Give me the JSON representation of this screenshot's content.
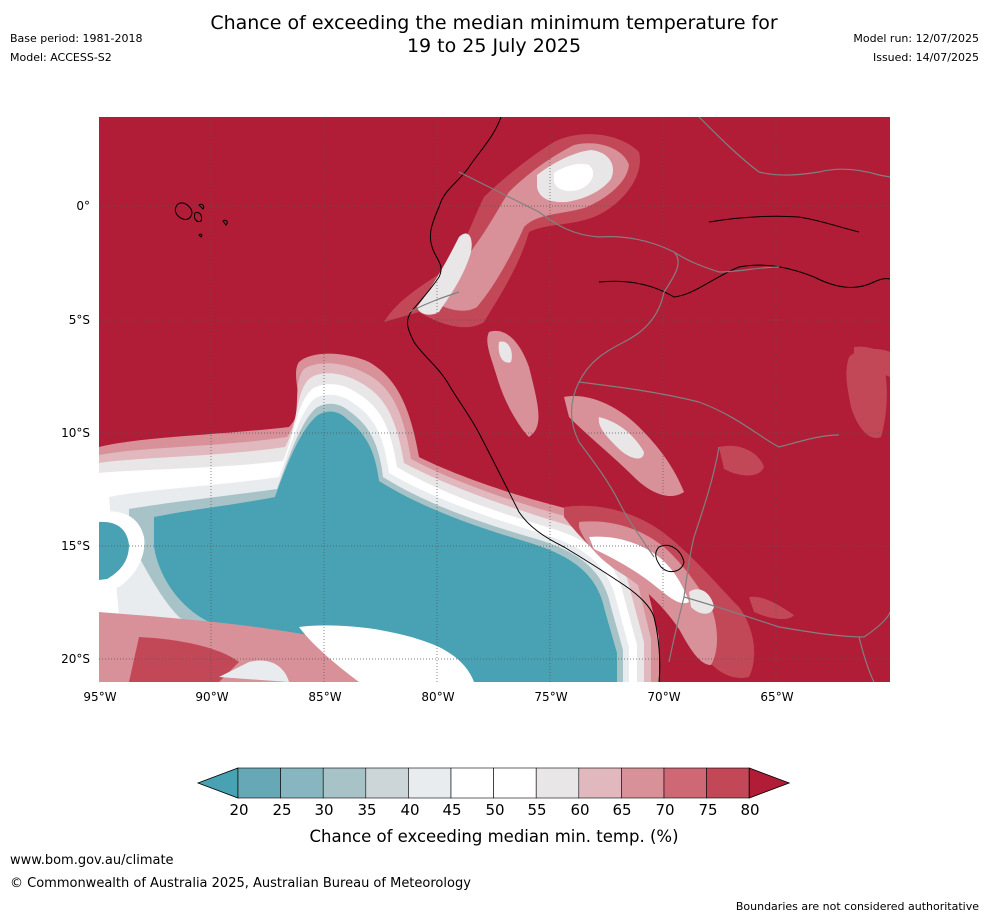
{
  "header": {
    "title_line1": "Chance of exceeding the median minimum temperature for",
    "title_line2": "19 to 25 July 2025",
    "base_period": "Base period: 1981-2018",
    "model": "Model: ACCESS-S2",
    "model_run": "Model run: 12/07/2025",
    "issued": "Issued: 14/07/2025"
  },
  "map": {
    "lat_labels": [
      "0°",
      "5°S",
      "10°S",
      "15°S",
      "20°S"
    ],
    "lon_labels": [
      "95°W",
      "90°W",
      "85°W",
      "80°W",
      "75°W",
      "70°W",
      "65°W"
    ],
    "colors": {
      "above_80": "#b11c37",
      "r75_80": "#c24858",
      "r70_75": "#cf6875",
      "r65_70": "#d89199",
      "r60_65": "#e1b8bd",
      "r55_60": "#e9e6e8",
      "r50_55": "#ffffff",
      "r45_50": "#ffffff",
      "r40_45": "#e8ecef",
      "r35_40": "#ccd5d8",
      "r30_35": "#a8c3c8",
      "r25_30": "#87b6c0",
      "r20_25": "#66a8b5",
      "below_20": "#48a2b3",
      "coast": "#000000",
      "border": "#808080",
      "grid": "#555555"
    }
  },
  "colorbar": {
    "ticks": [
      "20",
      "25",
      "30",
      "35",
      "40",
      "45",
      "50",
      "55",
      "60",
      "65",
      "70",
      "75",
      "80"
    ],
    "label": "Chance of exceeding median min. temp. (%)",
    "colors": [
      "#48a2b3",
      "#66a8b5",
      "#87b6c0",
      "#a8c3c8",
      "#ccd5d8",
      "#e8ecef",
      "#ffffff",
      "#ffffff",
      "#e9e6e8",
      "#e1b8bd",
      "#d89199",
      "#cf6875",
      "#c24858",
      "#b11c37"
    ]
  },
  "footer": {
    "url": "www.bom.gov.au/climate",
    "copyright": "© Commonwealth of Australia 2025, Australian Bureau of Meteorology",
    "disclaimer": "Boundaries are not considered authoritative"
  }
}
